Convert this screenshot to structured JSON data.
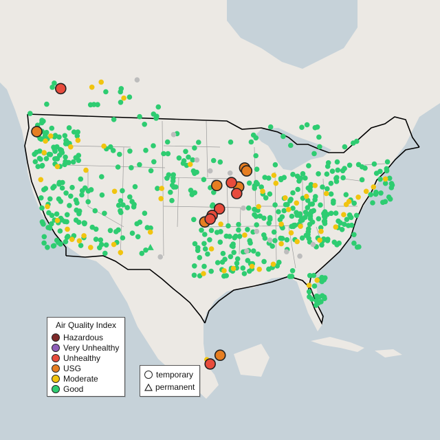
{
  "legend": {
    "title": "Air Quality Index",
    "categories": [
      {
        "label": "Hazardous",
        "color": "#7e2a2a"
      },
      {
        "label": "Very Unhealthy",
        "color": "#8e5fb8"
      },
      {
        "label": "Unhealthy",
        "color": "#e84c3d"
      },
      {
        "label": "USG",
        "color": "#e67e22"
      },
      {
        "label": "Moderate",
        "color": "#f1c40f"
      },
      {
        "label": "Good",
        "color": "#2ecc71"
      }
    ]
  },
  "monitor_types": [
    {
      "label": "temporary",
      "shape": "circle"
    },
    {
      "label": "permanent",
      "shape": "triangle"
    }
  ],
  "colors": {
    "water": "#c6d2d9",
    "land": "#ece9e4",
    "no_data": "#bdbdbd",
    "border": "#000000"
  },
  "chart_data": {
    "type": "scatter",
    "description_units": "longitude / latitude (degrees)",
    "series": [
      {
        "category": "Unhealthy",
        "points": [
          {
            "lon": -94.3,
            "lat": 41.9
          },
          {
            "lon": -93.5,
            "lat": 40.4
          },
          {
            "lon": -96.1,
            "lat": 38.3
          },
          {
            "lon": -97.2,
            "lat": 37.4
          },
          {
            "lon": -97.5,
            "lat": 36.9
          },
          {
            "lon": -120.0,
            "lat": 54.8
          },
          {
            "lon": -97.5,
            "lat": 17.0
          }
        ]
      },
      {
        "category": "USG",
        "points": [
          {
            "lon": -123.6,
            "lat": 48.9
          },
          {
            "lon": -92.3,
            "lat": 43.9
          },
          {
            "lon": -96.5,
            "lat": 41.5
          },
          {
            "lon": -98.3,
            "lat": 36.5
          },
          {
            "lon": -92.0,
            "lat": 43.5
          },
          {
            "lon": -93.2,
            "lat": 41.3
          },
          {
            "lon": -96.0,
            "lat": 18.2
          }
        ]
      },
      {
        "category": "Moderate",
        "points": [
          {
            "lon": -115.3,
            "lat": 55.0
          },
          {
            "lon": -113.9,
            "lat": 55.7
          },
          {
            "lon": -110.5,
            "lat": 53.5
          },
          {
            "lon": -121.5,
            "lat": 48.3
          },
          {
            "lon": -122.5,
            "lat": 46.0
          },
          {
            "lon": -118.5,
            "lat": 46.8
          },
          {
            "lon": -120.5,
            "lat": 44.1
          },
          {
            "lon": -123.0,
            "lat": 42.3
          },
          {
            "lon": -122.0,
            "lat": 38.6
          },
          {
            "lon": -120.5,
            "lat": 36.7
          },
          {
            "lon": -119.0,
            "lat": 35.5
          },
          {
            "lon": -118.3,
            "lat": 34.1
          },
          {
            "lon": -117.2,
            "lat": 33.9
          },
          {
            "lon": -116.5,
            "lat": 34.6
          },
          {
            "lon": -115.5,
            "lat": 33.0
          },
          {
            "lon": -112.0,
            "lat": 33.4
          },
          {
            "lon": -111.0,
            "lat": 32.3
          },
          {
            "lon": -111.9,
            "lat": 40.7
          },
          {
            "lon": -116.2,
            "lat": 43.6
          },
          {
            "lon": -113.5,
            "lat": 46.9
          },
          {
            "lon": -106.5,
            "lat": 35.1
          },
          {
            "lon": -104.9,
            "lat": 39.7
          },
          {
            "lon": -95.4,
            "lat": 29.8
          },
          {
            "lon": -94.0,
            "lat": 30.1
          },
          {
            "lon": -91.2,
            "lat": 30.4
          },
          {
            "lon": -90.1,
            "lat": 30.0
          },
          {
            "lon": -88.0,
            "lat": 30.7
          },
          {
            "lon": -87.9,
            "lat": 42.9
          },
          {
            "lon": -87.6,
            "lat": 41.8
          },
          {
            "lon": -86.2,
            "lat": 39.8
          },
          {
            "lon": -84.5,
            "lat": 39.1
          },
          {
            "lon": -83.0,
            "lat": 40.0
          },
          {
            "lon": -81.7,
            "lat": 41.5
          },
          {
            "lon": -80.0,
            "lat": 40.4
          },
          {
            "lon": -84.4,
            "lat": 33.8
          },
          {
            "lon": -81.0,
            "lat": 34.0
          },
          {
            "lon": -80.8,
            "lat": 35.2
          },
          {
            "lon": -78.6,
            "lat": 35.8
          },
          {
            "lon": -77.4,
            "lat": 37.5
          },
          {
            "lon": -77.0,
            "lat": 38.9
          },
          {
            "lon": -76.6,
            "lat": 39.3
          },
          {
            "lon": -75.2,
            "lat": 39.9
          },
          {
            "lon": -74.0,
            "lat": 40.7
          },
          {
            "lon": -72.9,
            "lat": 41.3
          },
          {
            "lon": -71.1,
            "lat": 42.4
          },
          {
            "lon": -90.2,
            "lat": 38.6
          },
          {
            "lon": -86.8,
            "lat": 36.2
          },
          {
            "lon": -86.8,
            "lat": 33.5
          },
          {
            "lon": -92.3,
            "lat": 34.7
          },
          {
            "lon": -97.3,
            "lat": 32.8
          },
          {
            "lon": -98.5,
            "lat": 29.4
          },
          {
            "lon": -83.9,
            "lat": 35.9
          },
          {
            "lon": -85.3,
            "lat": 35.0
          },
          {
            "lon": -82.6,
            "lat": 27.8
          },
          {
            "lon": -81.4,
            "lat": 28.5
          },
          {
            "lon": -89.6,
            "lat": 40.7
          },
          {
            "lon": -85.7,
            "lat": 38.2
          },
          {
            "lon": -117.4,
            "lat": 47.7
          },
          {
            "lon": -122.3,
            "lat": 47.6
          },
          {
            "lon": -98.0,
            "lat": 17.6
          },
          {
            "lon": -100.5,
            "lat": 44.4
          },
          {
            "lon": -104.8,
            "lat": 41.1
          },
          {
            "lon": -95.9,
            "lat": 36.2
          }
        ]
      },
      {
        "category": "No data",
        "points": [
          {
            "lon": -108.5,
            "lat": 56.0
          },
          {
            "lon": -103.0,
            "lat": 48.5
          },
          {
            "lon": -99.5,
            "lat": 45.0
          },
          {
            "lon": -97.5,
            "lat": 43.5
          },
          {
            "lon": -96.8,
            "lat": 42.0
          },
          {
            "lon": -92.5,
            "lat": 38.4
          },
          {
            "lon": -90.5,
            "lat": 35.2
          },
          {
            "lon": -88.5,
            "lat": 34.0
          },
          {
            "lon": -86.0,
            "lat": 32.4
          },
          {
            "lon": -84.0,
            "lat": 31.8
          },
          {
            "lon": -82.0,
            "lat": 33.4
          },
          {
            "lon": -92.0,
            "lat": 32.5
          },
          {
            "lon": -94.5,
            "lat": 43.2
          },
          {
            "lon": -105.0,
            "lat": 31.7
          }
        ]
      }
    ]
  }
}
